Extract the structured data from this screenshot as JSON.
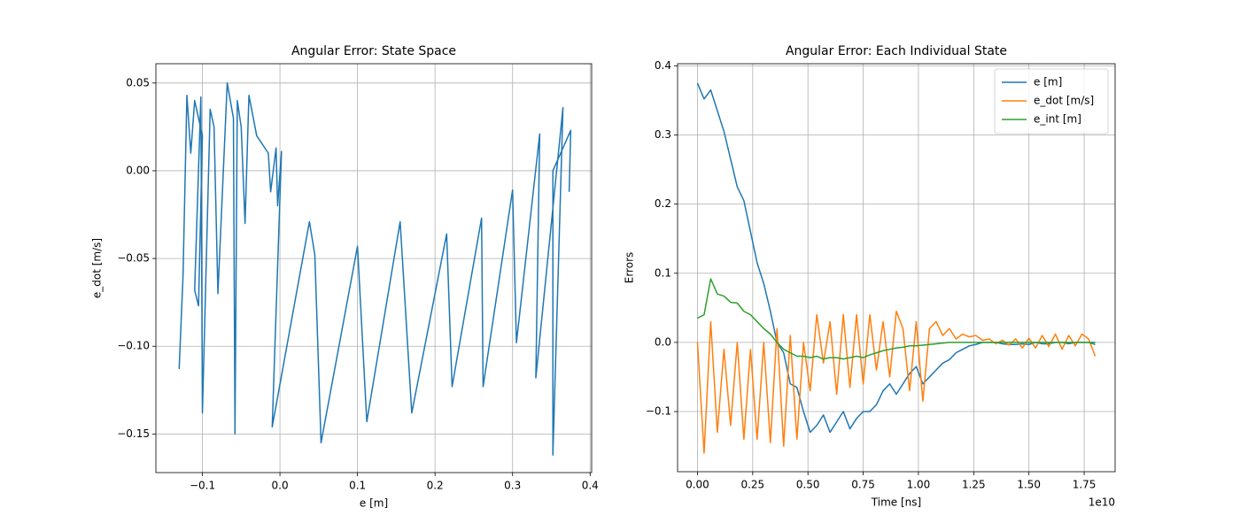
{
  "chart_data": [
    {
      "type": "line",
      "title": "Angular Error: State Space",
      "xlabel": "e [m]",
      "ylabel": "e_dot [m/s]",
      "grid": true,
      "xlim": [
        -0.16,
        0.402
      ],
      "ylim": [
        -0.172,
        0.061
      ],
      "xticks": [
        {
          "value": -0.1,
          "label": "−0.1"
        },
        {
          "value": 0.0,
          "label": "0.0"
        },
        {
          "value": 0.1,
          "label": "0.1"
        },
        {
          "value": 0.2,
          "label": "0.2"
        },
        {
          "value": 0.3,
          "label": "0.3"
        },
        {
          "value": 0.4,
          "label": "0.4"
        }
      ],
      "yticks": [
        {
          "value": -0.15,
          "label": "−0.15"
        },
        {
          "value": -0.1,
          "label": "−0.10"
        },
        {
          "value": -0.05,
          "label": "−0.05"
        },
        {
          "value": 0.0,
          "label": "0.00"
        },
        {
          "value": 0.05,
          "label": "0.05"
        }
      ],
      "x": [
        -0.13,
        -0.125,
        -0.12,
        -0.115,
        -0.11,
        -0.1,
        -0.105,
        -0.11,
        -0.102,
        -0.1,
        -0.09,
        -0.085,
        -0.08,
        -0.068,
        -0.06,
        -0.058,
        -0.055,
        -0.05,
        -0.045,
        -0.04,
        -0.03,
        -0.015,
        -0.012,
        -0.005,
        -0.003,
        0.002,
        -0.01,
        0.038,
        0.045,
        0.053,
        0.1,
        0.112,
        0.155,
        0.17,
        0.215,
        0.222,
        0.26,
        0.262,
        0.3,
        0.305,
        0.335,
        0.33,
        0.365,
        0.352,
        0.352,
        0.375,
        0.373
      ],
      "series": [
        {
          "color": "#1f77b4",
          "values": [
            -0.113,
            -0.06,
            0.043,
            0.01,
            0.04,
            0.02,
            -0.077,
            -0.068,
            0.042,
            -0.138,
            0.035,
            0.025,
            -0.07,
            0.05,
            0.03,
            -0.15,
            0.04,
            0.025,
            -0.03,
            0.043,
            0.02,
            0.01,
            -0.012,
            0.013,
            -0.02,
            0.011,
            -0.146,
            -0.029,
            -0.048,
            -0.155,
            -0.043,
            -0.143,
            -0.029,
            -0.138,
            -0.036,
            -0.123,
            -0.027,
            -0.123,
            -0.011,
            -0.098,
            0.021,
            -0.118,
            0.036,
            -0.162,
            0.0,
            0.023,
            -0.012
          ]
        }
      ]
    },
    {
      "type": "line",
      "title": "Angular Error: Each Individual State",
      "xlabel": "Time [ns]",
      "ylabel": "Errors",
      "x_offset_label": "1e10",
      "grid": true,
      "legend": "upper right",
      "xlim": [
        -900000000,
        18900000000
      ],
      "ylim": [
        -0.187,
        0.403
      ],
      "xticks": [
        {
          "value": 0,
          "label": "0.00"
        },
        {
          "value": 2500000000,
          "label": "0.25"
        },
        {
          "value": 5000000000,
          "label": "0.50"
        },
        {
          "value": 7500000000,
          "label": "0.75"
        },
        {
          "value": 10000000000,
          "label": "1.00"
        },
        {
          "value": 12500000000,
          "label": "1.25"
        },
        {
          "value": 15000000000,
          "label": "1.50"
        },
        {
          "value": 17500000000,
          "label": "1.75"
        }
      ],
      "yticks": [
        {
          "value": -0.1,
          "label": "−0.1"
        },
        {
          "value": 0.0,
          "label": "0.0"
        },
        0.1,
        0.2,
        0.3,
        0.4
      ],
      "x": [
        0,
        300000000,
        600000000,
        900000000,
        1200000000,
        1500000000,
        1800000000,
        2100000000,
        2400000000,
        2700000000,
        3000000000,
        3300000000,
        3600000000,
        3900000000,
        4200000000,
        4500000000,
        4800000000,
        5100000000,
        5400000000,
        5700000000,
        6000000000,
        6300000000,
        6600000000,
        6900000000,
        7200000000,
        7500000000,
        7800000000,
        8100000000,
        8400000000,
        8700000000,
        9000000000,
        9300000000,
        9600000000,
        9900000000,
        10200000000,
        10500000000,
        10800000000,
        11100000000,
        11400000000,
        11700000000,
        12000000000,
        12300000000,
        12600000000,
        12900000000,
        13200000000,
        13500000000,
        13800000000,
        14100000000,
        14400000000,
        14700000000,
        15000000000,
        15300000000,
        15600000000,
        15900000000,
        16200000000,
        16500000000,
        16800000000,
        17100000000,
        17400000000,
        17700000000,
        18000000000
      ],
      "series": [
        {
          "name": "e [m]",
          "color": "#1f77b4",
          "values": [
            0.375,
            0.352,
            0.365,
            0.335,
            0.305,
            0.265,
            0.225,
            0.205,
            0.16,
            0.115,
            0.085,
            0.045,
            0.0,
            -0.015,
            -0.06,
            -0.065,
            -0.1,
            -0.13,
            -0.12,
            -0.105,
            -0.13,
            -0.115,
            -0.1,
            -0.125,
            -0.11,
            -0.1,
            -0.1,
            -0.09,
            -0.07,
            -0.06,
            -0.075,
            -0.06,
            -0.045,
            -0.035,
            -0.06,
            -0.05,
            -0.04,
            -0.03,
            -0.025,
            -0.015,
            -0.01,
            -0.005,
            -0.003,
            0.0,
            0.0,
            0.0,
            -0.002,
            -0.003,
            -0.003,
            -0.002,
            -0.003,
            0.0,
            -0.002,
            -0.002,
            0.0,
            0.0,
            -0.002,
            0.0,
            0.0,
            0.0,
            0.0
          ]
        },
        {
          "name": "e_dot [m/s]",
          "color": "#ff7f0e",
          "values": [
            0.0,
            -0.16,
            0.03,
            -0.13,
            -0.01,
            -0.12,
            0.0,
            -0.14,
            -0.01,
            -0.14,
            0.0,
            -0.145,
            0.02,
            -0.15,
            0.01,
            -0.14,
            0.0,
            -0.07,
            0.04,
            -0.03,
            0.03,
            -0.075,
            0.04,
            -0.065,
            0.04,
            -0.06,
            0.04,
            -0.04,
            0.03,
            -0.05,
            0.045,
            0.02,
            -0.07,
            0.03,
            -0.085,
            0.02,
            0.03,
            0.01,
            0.02,
            0.005,
            0.012,
            0.008,
            0.01,
            0.003,
            0.005,
            -0.002,
            0.003,
            -0.004,
            0.005,
            -0.008,
            0.006,
            -0.008,
            0.01,
            -0.006,
            0.012,
            -0.01,
            0.01,
            -0.005,
            0.012,
            0.005,
            -0.02
          ]
        },
        {
          "name": "e_int [m]",
          "color": "#2ca02c",
          "values": [
            0.035,
            0.04,
            0.092,
            0.07,
            0.067,
            0.058,
            0.057,
            0.045,
            0.04,
            0.03,
            0.02,
            0.012,
            0.0,
            -0.01,
            -0.015,
            -0.02,
            -0.02,
            -0.022,
            -0.02,
            -0.024,
            -0.022,
            -0.022,
            -0.024,
            -0.022,
            -0.02,
            -0.022,
            -0.018,
            -0.015,
            -0.012,
            -0.01,
            -0.008,
            -0.007,
            -0.005,
            -0.005,
            -0.004,
            -0.003,
            -0.002,
            -0.001,
            0.0,
            0.0,
            0.0,
            0.0,
            0.0,
            0.0,
            0.0,
            0.0,
            0.0,
            0.0,
            0.0,
            0.0,
            0.0,
            0.0,
            0.0,
            0.0,
            0.0,
            0.0,
            0.0,
            0.0,
            0.0,
            0.0,
            -0.003
          ]
        }
      ]
    }
  ]
}
